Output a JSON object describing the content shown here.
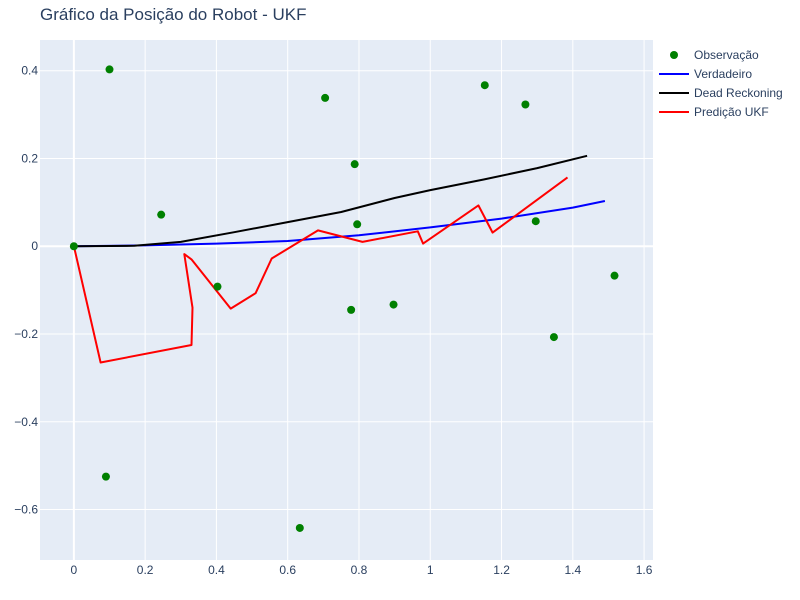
{
  "chart_data": {
    "type": "scatter",
    "title": "Gráfico da Posição do Robot - UKF",
    "xlabel": "",
    "ylabel": "",
    "xlim": [
      -0.095,
      1.625
    ],
    "ylim": [
      -0.715,
      0.47
    ],
    "x_ticks": [
      0,
      0.2,
      0.4,
      0.6,
      0.8,
      1,
      1.2,
      1.4,
      1.6
    ],
    "x_tick_labels": [
      "0",
      "0.2",
      "0.4",
      "0.6",
      "0.8",
      "1",
      "1.2",
      "1.4",
      "1.6"
    ],
    "y_ticks": [
      -0.6,
      -0.4,
      -0.2,
      0,
      0.2,
      0.4
    ],
    "y_tick_labels": [
      "−0.6",
      "−0.4",
      "−0.2",
      "0",
      "0.2",
      "0.4"
    ],
    "grid": true,
    "legend_position": "top-right-outside",
    "series": [
      {
        "name": "Observação",
        "mode": "markers",
        "color": "#008000",
        "points": [
          [
            0.0,
            0.0
          ],
          [
            0.1,
            0.403
          ],
          [
            0.09,
            -0.525
          ],
          [
            0.245,
            0.072
          ],
          [
            0.403,
            -0.092
          ],
          [
            0.634,
            -0.642
          ],
          [
            0.705,
            0.338
          ],
          [
            0.778,
            -0.145
          ],
          [
            0.788,
            0.187
          ],
          [
            0.795,
            0.05
          ],
          [
            0.897,
            -0.133
          ],
          [
            1.153,
            0.367
          ],
          [
            1.267,
            0.323
          ],
          [
            1.296,
            0.057
          ],
          [
            1.347,
            -0.207
          ],
          [
            1.517,
            -0.067
          ]
        ]
      },
      {
        "name": "Verdadeiro",
        "mode": "lines",
        "color": "#0000ff",
        "points": [
          [
            0.0,
            0.0
          ],
          [
            0.2,
            0.002
          ],
          [
            0.4,
            0.006
          ],
          [
            0.6,
            0.012
          ],
          [
            0.8,
            0.025
          ],
          [
            1.0,
            0.043
          ],
          [
            1.2,
            0.063
          ],
          [
            1.4,
            0.088
          ],
          [
            1.49,
            0.103
          ]
        ]
      },
      {
        "name": "Dead Reckoning",
        "mode": "lines",
        "color": "#000000",
        "points": [
          [
            0.0,
            0.0
          ],
          [
            0.17,
            0.001
          ],
          [
            0.3,
            0.01
          ],
          [
            0.45,
            0.032
          ],
          [
            0.6,
            0.055
          ],
          [
            0.75,
            0.078
          ],
          [
            0.9,
            0.11
          ],
          [
            1.0,
            0.128
          ],
          [
            1.15,
            0.152
          ],
          [
            1.3,
            0.178
          ],
          [
            1.44,
            0.206
          ]
        ]
      },
      {
        "name": "Predição UKF",
        "mode": "lines",
        "color": "#ff0000",
        "points": [
          [
            0.0,
            0.0
          ],
          [
            0.075,
            -0.265
          ],
          [
            0.33,
            -0.225
          ],
          [
            0.333,
            -0.14
          ],
          [
            0.31,
            -0.018
          ],
          [
            0.33,
            -0.03
          ],
          [
            0.44,
            -0.142
          ],
          [
            0.51,
            -0.107
          ],
          [
            0.555,
            -0.028
          ],
          [
            0.685,
            0.036
          ],
          [
            0.81,
            0.01
          ],
          [
            0.965,
            0.034
          ],
          [
            0.98,
            0.006
          ],
          [
            1.135,
            0.093
          ],
          [
            1.175,
            0.031
          ],
          [
            1.385,
            0.157
          ]
        ]
      }
    ]
  }
}
